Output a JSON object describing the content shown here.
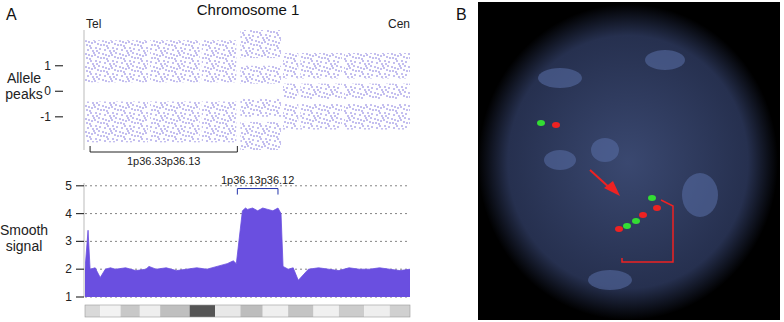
{
  "figure": {
    "title": "Chromosome 1",
    "panel_labels": [
      "A",
      "B"
    ],
    "left_end": "Tel",
    "right_end": "Cen"
  },
  "ideogram": {
    "bands": [
      [
        0,
        1.5
      ],
      [
        1.5,
        3.5
      ],
      [
        3.5,
        5.4
      ],
      [
        5.4,
        7.4
      ],
      [
        7.4,
        10.3
      ],
      [
        10.3,
        12.8
      ],
      [
        12.8,
        15.3
      ],
      [
        15.3,
        17.5
      ],
      [
        17.5,
        20
      ],
      [
        20,
        22.5
      ],
      [
        22.5,
        25
      ],
      [
        25,
        27.5
      ],
      [
        27.5,
        30
      ],
      [
        30,
        32
      ]
    ],
    "colors": [
      "#d9d9d9",
      "#f2f2f2",
      "#c8c8c8",
      "#eeeeee",
      "#bfbfbf",
      "#555555",
      "#e8e8e8",
      "#bdbdbd",
      "#efefef",
      "#c4c4c4",
      "#f0f0f0",
      "#cccccc",
      "#eeeeee",
      "#d0d0d0"
    ]
  },
  "chart_data": [
    {
      "type": "scatter",
      "ylabel": "Allele peaks",
      "xlim": [
        0,
        32
      ],
      "ylim": [
        -2.3,
        2.4
      ],
      "yticks": [
        1,
        0,
        -1
      ],
      "tick_labels": "y",
      "grid": false,
      "color": "#6b5fd6",
      "bands": [
        {
          "x": [
            0,
            6.2
          ],
          "y": [
            0.35,
            2.0
          ]
        },
        {
          "x": [
            0,
            6.2
          ],
          "y": [
            -2.0,
            -0.4
          ]
        },
        {
          "x": [
            6.4,
            11.3
          ],
          "y": [
            0.35,
            2.0
          ]
        },
        {
          "x": [
            6.4,
            11.3
          ],
          "y": [
            -2.0,
            -0.4
          ]
        },
        {
          "x": [
            11.5,
            14.9
          ],
          "y": [
            0.35,
            2.0
          ]
        },
        {
          "x": [
            11.5,
            14.9
          ],
          "y": [
            -2.0,
            -0.4
          ]
        },
        {
          "x": [
            15.3,
            19.3
          ],
          "y": [
            1.3,
            2.4
          ]
        },
        {
          "x": [
            15.3,
            19.3
          ],
          "y": [
            0.3,
            1.0
          ]
        },
        {
          "x": [
            15.3,
            19.3
          ],
          "y": [
            -1.0,
            -0.3
          ]
        },
        {
          "x": [
            15.3,
            19.3
          ],
          "y": [
            -2.3,
            -1.2
          ]
        },
        {
          "x": [
            19.5,
            21.0
          ],
          "y": [
            0.5,
            1.5
          ]
        },
        {
          "x": [
            19.5,
            21.0
          ],
          "y": [
            -0.3,
            0.3
          ]
        },
        {
          "x": [
            19.5,
            21.0
          ],
          "y": [
            -1.5,
            -0.5
          ]
        },
        {
          "x": [
            21.2,
            25.3
          ],
          "y": [
            0.5,
            1.5
          ]
        },
        {
          "x": [
            21.2,
            25.3
          ],
          "y": [
            -0.3,
            0.3
          ]
        },
        {
          "x": [
            21.2,
            25.3
          ],
          "y": [
            -1.5,
            -0.5
          ]
        },
        {
          "x": [
            25.5,
            32
          ],
          "y": [
            0.5,
            1.5
          ]
        },
        {
          "x": [
            25.5,
            32
          ],
          "y": [
            -0.3,
            0.3
          ]
        },
        {
          "x": [
            25.5,
            32
          ],
          "y": [
            -1.5,
            -0.5
          ]
        }
      ],
      "annotations": [
        {
          "text": "1p36.33p36.13",
          "x": [
            0.5,
            15.0
          ]
        }
      ]
    },
    {
      "type": "area",
      "ylabel": "Smooth signal",
      "xlim": [
        0,
        32
      ],
      "ylim": [
        1,
        5.1
      ],
      "yticks": [
        1,
        2,
        3,
        4,
        5
      ],
      "tick_labels": "y",
      "grid": true,
      "color": "#6a4fe0",
      "x": [
        0,
        0.3,
        0.5,
        1,
        1.5,
        2,
        2.5,
        3,
        4,
        5,
        6,
        6.3,
        7,
        8,
        9,
        10,
        11,
        12,
        13,
        14,
        14.6,
        14.9,
        15.5,
        15.8,
        16,
        16.5,
        17,
        17.5,
        18,
        18.5,
        19,
        19.3,
        19.5,
        20,
        20.5,
        21,
        22,
        23,
        24,
        25,
        26,
        27,
        28,
        29,
        30,
        31,
        32
      ],
      "values": [
        2.0,
        3.4,
        2.0,
        2.05,
        1.7,
        2.0,
        2.05,
        2.0,
        2.05,
        1.95,
        2.0,
        2.1,
        2.0,
        2.05,
        1.95,
        2.0,
        2.05,
        2.0,
        2.1,
        2.2,
        2.3,
        2.2,
        4.1,
        4.2,
        4.15,
        4.2,
        4.1,
        4.2,
        4.15,
        4.1,
        4.2,
        4.0,
        2.1,
        2.0,
        2.05,
        1.6,
        2.0,
        2.05,
        2.0,
        1.95,
        2.05,
        2.0,
        2.0,
        2.05,
        2.0,
        1.95,
        2.0
      ],
      "annotations": [
        {
          "text": "1p36.13p36.12",
          "x": [
            15.0,
            19.0
          ],
          "y": 4.9
        }
      ]
    }
  ]
}
